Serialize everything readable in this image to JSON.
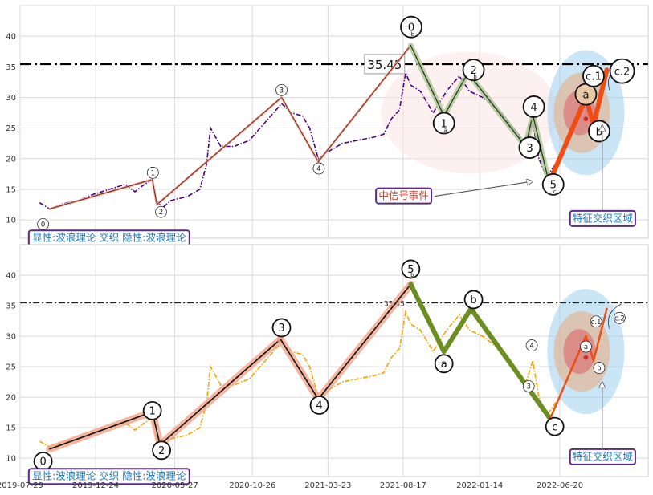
{
  "chart_data": [
    {
      "type": "line",
      "panel": "top",
      "ylim": [
        7,
        45
      ],
      "yticks": [
        10,
        15,
        20,
        25,
        30,
        35,
        40
      ],
      "grid": true,
      "reference_line": {
        "value": 35.45,
        "label": "35.45",
        "style": "dash-dot"
      },
      "price_color": "#4b0082",
      "price_series": [
        [
          "2019-09-05",
          12.8
        ],
        [
          "2019-09-25",
          11.8
        ],
        [
          "2019-10-20",
          12.6
        ],
        [
          "2019-11-20",
          13.2
        ],
        [
          "2019-12-20",
          14.2
        ],
        [
          "2020-01-20",
          15.0
        ],
        [
          "2020-02-20",
          15.8
        ],
        [
          "2020-03-10",
          14.6
        ],
        [
          "2020-03-25",
          15.6
        ],
        [
          "2020-04-13",
          16.6
        ],
        [
          "2020-04-22",
          13.0
        ],
        [
          "2020-05-03",
          12.0
        ],
        [
          "2020-05-20",
          13.2
        ],
        [
          "2020-06-20",
          13.8
        ],
        [
          "2020-07-15",
          15.0
        ],
        [
          "2020-07-28",
          19.0
        ],
        [
          "2020-08-05",
          25.0
        ],
        [
          "2020-08-25",
          22.0
        ],
        [
          "2020-09-20",
          22.0
        ],
        [
          "2020-10-20",
          23.0
        ],
        [
          "2020-11-10",
          25.0
        ],
        [
          "2020-12-01",
          27.0
        ],
        [
          "2020-12-22",
          29.0
        ],
        [
          "2021-01-10",
          27.5
        ],
        [
          "2021-02-01",
          27.0
        ],
        [
          "2021-02-15",
          25.0
        ],
        [
          "2021-03-04",
          20.0
        ],
        [
          "2021-03-20",
          21.0
        ],
        [
          "2021-04-20",
          22.5
        ],
        [
          "2021-05-20",
          23.0
        ],
        [
          "2021-06-20",
          23.5
        ],
        [
          "2021-07-10",
          24.0
        ],
        [
          "2021-07-25",
          26.5
        ],
        [
          "2021-08-10",
          28.0
        ],
        [
          "2021-08-22",
          34.0
        ],
        [
          "2021-09-01",
          32.0
        ],
        [
          "2021-09-20",
          31.0
        ],
        [
          "2021-10-15",
          27.5
        ],
        [
          "2021-11-10",
          31.0
        ],
        [
          "2021-12-05",
          33.5
        ],
        [
          "2021-12-25",
          31.0
        ],
        [
          "2022-01-20",
          30.0
        ],
        [
          "2022-02-20",
          28.0
        ],
        [
          "2022-03-20",
          25.0
        ],
        [
          "2022-04-15",
          22.5
        ],
        [
          "2022-04-28",
          26.0
        ],
        [
          "2022-05-10",
          20.0
        ],
        [
          "2022-05-25",
          17.0
        ],
        [
          "2022-06-15",
          19.5
        ]
      ],
      "wave_points": [
        {
          "date": "2019-09-25",
          "value": 11.8
        },
        {
          "date": "2020-04-13",
          "value": 16.6
        },
        {
          "date": "2020-04-22",
          "value": 12.5
        },
        {
          "date": "2020-12-22",
          "value": 30.0
        },
        {
          "date": "2021-03-04",
          "value": 19.5
        },
        {
          "date": "2021-09-01",
          "value": 38.5
        },
        {
          "date": "2021-11-05",
          "value": 27.0
        },
        {
          "date": "2021-12-22",
          "value": 34.0
        },
        {
          "date": "2022-04-14",
          "value": 22.0
        },
        {
          "date": "2022-04-28",
          "value": 27.2
        },
        {
          "date": "2022-05-30",
          "value": 16.0
        }
      ],
      "forecast_path": [
        {
          "date": "2022-05-30",
          "value": 16.0
        },
        {
          "date": "2022-08-10",
          "value": 30.0
        },
        {
          "date": "2022-08-25",
          "value": 25.5
        },
        {
          "date": "2022-09-20",
          "value": 34.5
        }
      ],
      "wave_labels": [
        {
          "label": "0",
          "sub": "",
          "date": "2019-09-12",
          "value": 9.3,
          "size": "s"
        },
        {
          "label": "1",
          "sub": "",
          "date": "2020-04-14",
          "value": 17.7,
          "size": "s"
        },
        {
          "label": "2",
          "sub": "",
          "date": "2020-04-30",
          "value": 11.3,
          "size": "s"
        },
        {
          "label": "3",
          "sub": "",
          "date": "2020-12-22",
          "value": 31.2,
          "size": "s"
        },
        {
          "label": "4",
          "sub": "",
          "date": "2021-03-05",
          "value": 18.4,
          "size": "s"
        },
        {
          "label": "0",
          "sub": "b",
          "date": "2021-09-02",
          "value": 41.5,
          "size": "l"
        },
        {
          "label": "1",
          "sub": "a",
          "date": "2021-11-05",
          "value": 25.8,
          "size": "l"
        },
        {
          "label": "2",
          "sub": "b",
          "date": "2022-01-02",
          "value": 34.5,
          "size": "l"
        },
        {
          "label": "4",
          "sub": "",
          "date": "2022-04-30",
          "value": 28.5,
          "size": "l"
        },
        {
          "label": "3",
          "sub": "",
          "date": "2022-04-22",
          "value": 21.8,
          "size": "l"
        },
        {
          "label": "5",
          "sub": "c",
          "date": "2022-06-07",
          "value": 15.8,
          "size": "l"
        },
        {
          "label": "a",
          "sub": "",
          "date": "2022-08-10",
          "value": 30.5,
          "size": "l"
        },
        {
          "label": "c.1",
          "sub": "",
          "date": "2022-08-25",
          "value": 33.5,
          "size": "l"
        },
        {
          "label": "b",
          "sub": "",
          "date": "2022-09-05",
          "value": 24.5,
          "size": "l"
        },
        {
          "label": "c.2",
          "sub": "",
          "date": "2022-10-20",
          "value": 34.3,
          "size": "xl"
        }
      ],
      "annotations": [
        {
          "text": "中信号事件",
          "color": "#c0392b",
          "date": "2021-06-25",
          "value": 14.0
        },
        {
          "text": "特征交织区域",
          "color": "#1f77b4",
          "date": "2022-07-10",
          "value": 10.3
        },
        {
          "text": "显性:波浪理论 交织 隐性:波浪理论",
          "color": "#1f77b4",
          "date": "2019-08-15",
          "value": 7.1
        }
      ]
    },
    {
      "type": "line",
      "panel": "bottom",
      "ylim": [
        7,
        45
      ],
      "yticks": [
        10,
        15,
        20,
        25,
        30,
        35,
        40
      ],
      "grid": true,
      "reference_line": {
        "value": 35.45,
        "label": "35.45",
        "style": "dash-dot"
      },
      "price_color": "#f0a500",
      "price_series": [
        [
          "2019-09-05",
          12.8
        ],
        [
          "2019-09-25",
          11.8
        ],
        [
          "2019-10-20",
          12.6
        ],
        [
          "2019-11-20",
          13.2
        ],
        [
          "2019-12-20",
          14.2
        ],
        [
          "2020-01-20",
          15.0
        ],
        [
          "2020-02-20",
          15.8
        ],
        [
          "2020-03-10",
          14.6
        ],
        [
          "2020-03-25",
          15.6
        ],
        [
          "2020-04-13",
          16.6
        ],
        [
          "2020-04-22",
          13.0
        ],
        [
          "2020-05-03",
          12.0
        ],
        [
          "2020-05-20",
          13.2
        ],
        [
          "2020-06-20",
          13.8
        ],
        [
          "2020-07-15",
          15.0
        ],
        [
          "2020-07-28",
          19.0
        ],
        [
          "2020-08-05",
          25.0
        ],
        [
          "2020-08-25",
          22.0
        ],
        [
          "2020-09-20",
          22.0
        ],
        [
          "2020-10-20",
          23.0
        ],
        [
          "2020-11-10",
          25.0
        ],
        [
          "2020-12-01",
          27.0
        ],
        [
          "2020-12-22",
          29.0
        ],
        [
          "2021-01-10",
          27.5
        ],
        [
          "2021-02-01",
          27.0
        ],
        [
          "2021-02-15",
          25.0
        ],
        [
          "2021-03-04",
          20.0
        ],
        [
          "2021-03-20",
          21.0
        ],
        [
          "2021-04-20",
          22.5
        ],
        [
          "2021-05-20",
          23.0
        ],
        [
          "2021-06-20",
          23.5
        ],
        [
          "2021-07-10",
          24.0
        ],
        [
          "2021-07-25",
          26.5
        ],
        [
          "2021-08-10",
          28.0
        ],
        [
          "2021-08-22",
          34.0
        ],
        [
          "2021-09-01",
          32.0
        ],
        [
          "2021-09-20",
          31.0
        ],
        [
          "2021-10-15",
          27.5
        ],
        [
          "2021-11-10",
          31.0
        ],
        [
          "2021-12-05",
          33.5
        ],
        [
          "2021-12-25",
          31.0
        ],
        [
          "2022-01-20",
          30.0
        ],
        [
          "2022-02-20",
          28.0
        ],
        [
          "2022-03-20",
          25.0
        ],
        [
          "2022-04-15",
          22.5
        ],
        [
          "2022-04-28",
          26.0
        ],
        [
          "2022-05-10",
          20.0
        ],
        [
          "2022-05-25",
          17.0
        ],
        [
          "2022-06-15",
          19.5
        ]
      ],
      "wave_points": [
        {
          "date": "2019-09-25",
          "value": 11.5
        },
        {
          "date": "2020-04-13",
          "value": 17.6
        },
        {
          "date": "2020-04-28",
          "value": 12.2
        },
        {
          "date": "2020-12-20",
          "value": 29.5
        },
        {
          "date": "2021-03-04",
          "value": 19.7
        },
        {
          "date": "2021-09-01",
          "value": 38.5
        },
        {
          "date": "2021-11-05",
          "value": 27.5
        },
        {
          "date": "2021-12-28",
          "value": 34.5
        },
        {
          "date": "2022-06-01",
          "value": 16.5
        }
      ],
      "forecast_path": [
        {
          "date": "2022-06-01",
          "value": 16.5
        },
        {
          "date": "2022-08-10",
          "value": 30.0
        },
        {
          "date": "2022-08-25",
          "value": 26.0
        },
        {
          "date": "2022-09-20",
          "value": 34.5
        }
      ],
      "wave_labels": [
        {
          "label": "0",
          "sub": "",
          "date": "2019-09-12",
          "value": 9.5,
          "size": "m"
        },
        {
          "label": "1",
          "sub": "",
          "date": "2020-04-13",
          "value": 17.8,
          "size": "m"
        },
        {
          "label": "2",
          "sub": "",
          "date": "2020-05-01",
          "value": 11.3,
          "size": "m"
        },
        {
          "label": "3",
          "sub": "",
          "date": "2020-12-22",
          "value": 31.4,
          "size": "m"
        },
        {
          "label": "4",
          "sub": "",
          "date": "2021-03-06",
          "value": 18.7,
          "size": "m"
        },
        {
          "label": "5",
          "sub": "b",
          "date": "2021-09-01",
          "value": 41.0,
          "size": "m"
        },
        {
          "label": "a",
          "sub": "",
          "date": "2021-11-05",
          "value": 25.5,
          "size": "m"
        },
        {
          "label": "b",
          "sub": "",
          "date": "2022-01-02",
          "value": 36.0,
          "size": "m"
        },
        {
          "label": "4",
          "sub": "",
          "date": "2022-04-26",
          "value": 28.5,
          "size": "s"
        },
        {
          "label": "3",
          "sub": "",
          "date": "2022-04-20",
          "value": 21.8,
          "size": "s"
        },
        {
          "label": "c",
          "sub": "",
          "date": "2022-06-10",
          "value": 15.2,
          "size": "m"
        },
        {
          "label": "a",
          "sub": "",
          "date": "2022-08-10",
          "value": 28.3,
          "size": "s"
        },
        {
          "label": "c.1",
          "sub": "",
          "date": "2022-08-30",
          "value": 32.4,
          "size": "s"
        },
        {
          "label": "b",
          "sub": "",
          "date": "2022-09-05",
          "value": 24.8,
          "size": "s"
        },
        {
          "label": "c.2",
          "sub": "",
          "date": "2022-10-15",
          "value": 33.0,
          "size": "s"
        }
      ],
      "annotations": [
        {
          "text": "特征交织区域",
          "color": "#1f77b4",
          "date": "2022-07-10",
          "value": 10.3
        },
        {
          "text": "显性:波浪理论 交织 隐性:波浪理论",
          "color": "#1f77b4",
          "date": "2019-08-15",
          "value": 7.1
        }
      ]
    }
  ],
  "x_axis": {
    "range": [
      "2019-07-29",
      "2022-12-10"
    ],
    "ticks": [
      "2019-07-29",
      "2019-12-24",
      "2020-05-27",
      "2020-10-26",
      "2021-03-23",
      "2021-08-17",
      "2022-01-14",
      "2022-06-20"
    ]
  }
}
